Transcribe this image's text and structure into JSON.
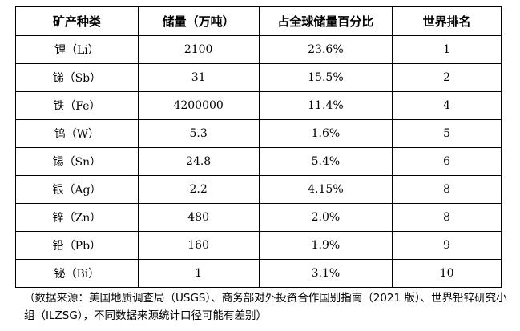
{
  "table": {
    "headers": [
      "矿产种类",
      "储量（万吨）",
      "占全球储量百分比",
      "世界排名"
    ],
    "rows": [
      [
        "锂（Li）",
        "2100",
        "23.6%",
        "1"
      ],
      [
        "锑（Sb）",
        "31",
        "15.5%",
        "2"
      ],
      [
        "铁（Fe）",
        "4200000",
        "11.4%",
        "4"
      ],
      [
        "钨（W）",
        "5.3",
        "1.6%",
        "5"
      ],
      [
        "锡（Sn）",
        "24.8",
        "5.4%",
        "6"
      ],
      [
        "银（Ag）",
        "2.2",
        "4.15%",
        "8"
      ],
      [
        "锌（Zn）",
        "480",
        "2.0%",
        "8"
      ],
      [
        "铅（Pb）",
        "160",
        "1.9%",
        "9"
      ],
      [
        "铋（Bi）",
        "1",
        "3.1%",
        "10"
      ]
    ]
  },
  "note": "（数据来源：美国地质调查局（USGS）、商务部对外投资合作国别指南（2021 版）、世界铅锌研究小组（ILZSG），不同数据来源统计口径可能有差别）"
}
